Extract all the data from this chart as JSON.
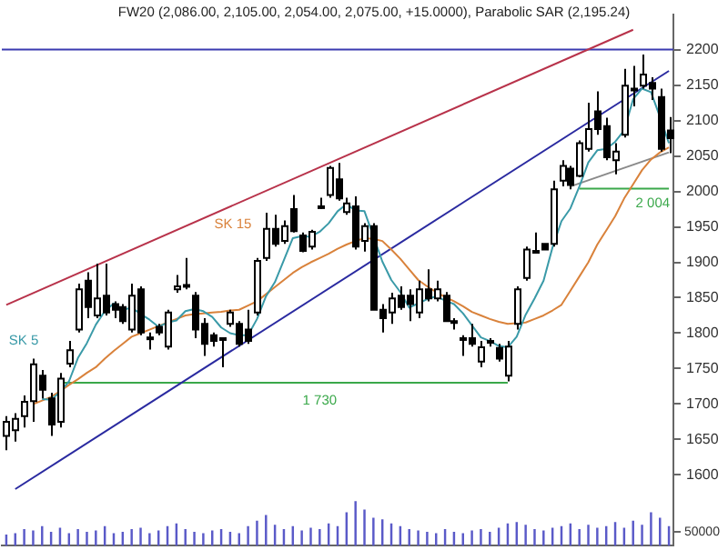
{
  "chart_data": {
    "type": "candlestick",
    "title": "FW20 (2,086.00, 2,105.00, 2,054.00, 2,075.00, +15.0000), Parabolic SAR (2,195.24)",
    "categories": [
      null,
      null,
      null,
      null,
      null,
      null,
      null,
      null,
      null,
      null,
      null,
      null,
      null,
      null,
      null,
      null,
      null,
      null,
      null,
      null,
      null,
      null,
      null,
      null,
      null,
      null,
      null,
      null,
      null,
      null,
      null,
      null,
      null,
      null,
      null,
      null,
      null,
      null,
      null,
      null,
      null,
      null,
      null,
      null,
      null,
      null,
      null,
      null,
      null,
      null,
      null,
      null,
      null,
      null,
      null,
      null,
      null,
      null,
      null,
      null,
      null,
      null,
      null,
      null,
      null,
      null,
      null,
      null,
      null,
      null,
      null,
      null,
      null,
      null,
      null
    ],
    "ohlc": [
      [
        1655,
        1683,
        1635,
        1675
      ],
      [
        1663,
        1687,
        1647,
        1679
      ],
      [
        1683,
        1712,
        1667,
        1703
      ],
      [
        1704,
        1764,
        1675,
        1756
      ],
      [
        1740,
        1748,
        1708,
        1720
      ],
      [
        1708,
        1716,
        1655,
        1671
      ],
      [
        1675,
        1744,
        1667,
        1736
      ],
      [
        1757,
        1789,
        1752,
        1776
      ],
      [
        1805,
        1870,
        1801,
        1862
      ],
      [
        1874,
        1886,
        1821,
        1837
      ],
      [
        1825,
        1898,
        1821,
        1849
      ],
      [
        1853,
        1898,
        1825,
        1829
      ],
      [
        1841,
        1845,
        1821,
        1833
      ],
      [
        1837,
        1841,
        1813,
        1817
      ],
      [
        1805,
        1870,
        1801,
        1853
      ],
      [
        1862,
        1866,
        1797,
        1801
      ],
      [
        1794,
        1801,
        1777,
        1792
      ],
      [
        1809,
        1813,
        1797,
        1801
      ],
      [
        1781,
        1833,
        1777,
        1829
      ],
      [
        1862,
        1882,
        1857,
        1866
      ],
      [
        1866,
        1906,
        1862,
        1868
      ],
      [
        1853,
        1858,
        1793,
        1805
      ],
      [
        1813,
        1821,
        1768,
        1785
      ],
      [
        1797,
        1801,
        1781,
        1789
      ],
      [
        1793,
        1793,
        1752,
        1792
      ],
      [
        1813,
        1833,
        1809,
        1829
      ],
      [
        1813,
        1817,
        1781,
        1785
      ],
      [
        1805,
        1833,
        1785,
        1789
      ],
      [
        1829,
        1906,
        1825,
        1902
      ],
      [
        1906,
        1970,
        1902,
        1947
      ],
      [
        1947,
        1967,
        1922,
        1926
      ],
      [
        1930,
        1959,
        1926,
        1951
      ],
      [
        1975,
        1995,
        1942,
        1944
      ],
      [
        1938,
        1942,
        1914,
        1916
      ],
      [
        1922,
        1946,
        1918,
        1943
      ],
      [
        1979,
        1991,
        1975,
        1979
      ],
      [
        1995,
        2036,
        1991,
        2033
      ],
      [
        2017,
        2040,
        1987,
        1990
      ],
      [
        1971,
        1991,
        1967,
        1983
      ],
      [
        1979,
        1993,
        1918,
        1922
      ],
      [
        1930,
        1955,
        1915,
        1951
      ],
      [
        1951,
        1955,
        1833,
        1833
      ],
      [
        1833,
        1841,
        1801,
        1821
      ],
      [
        1829,
        1857,
        1813,
        1849
      ],
      [
        1853,
        1866,
        1833,
        1837
      ],
      [
        1853,
        1862,
        1817,
        1841
      ],
      [
        1829,
        1874,
        1821,
        1862
      ],
      [
        1862,
        1890,
        1845,
        1849
      ],
      [
        1849,
        1874,
        1845,
        1862
      ],
      [
        1853,
        1858,
        1817,
        1817
      ],
      [
        1817,
        1821,
        1805,
        1817
      ],
      [
        1793,
        1797,
        1768,
        1793
      ],
      [
        1793,
        1813,
        1781,
        1785
      ],
      [
        1760,
        1789,
        1752,
        1780
      ],
      [
        1789,
        1793,
        1781,
        1789
      ],
      [
        1779,
        1785,
        1760,
        1764
      ],
      [
        1740,
        1789,
        1732,
        1781
      ],
      [
        1813,
        1866,
        1805,
        1862
      ],
      [
        1878,
        1922,
        1874,
        1918
      ],
      [
        1916,
        1942,
        1914,
        1916
      ],
      [
        1926,
        1926,
        1918,
        1918
      ],
      [
        1926,
        2015,
        1922,
        2003
      ],
      [
        2015,
        2044,
        2007,
        2036
      ],
      [
        2032,
        2036,
        2003,
        2009
      ],
      [
        2022,
        2072,
        2020,
        2068
      ],
      [
        2060,
        2125,
        2056,
        2088
      ],
      [
        2113,
        2141,
        2080,
        2088
      ],
      [
        2092,
        2104,
        2044,
        2048
      ],
      [
        2044,
        2068,
        2024,
        2056
      ],
      [
        2080,
        2173,
        2076,
        2149
      ],
      [
        2145,
        2177,
        2120,
        2145
      ],
      [
        2149,
        2193,
        2145,
        2165
      ],
      [
        2153,
        2161,
        2129,
        2145
      ],
      [
        2133,
        2145,
        2056,
        2060
      ],
      [
        2086,
        2105,
        2054,
        2075
      ]
    ],
    "series": [
      {
        "type": "line",
        "name": "SK 5",
        "color": "#3a9aa8",
        "values": [
          null,
          null,
          null,
          null,
          1707,
          1706,
          1717,
          1732,
          1765,
          1786,
          1812,
          1831,
          1842,
          1833,
          1836,
          1827,
          1819,
          1809,
          1815,
          1818,
          1831,
          1834,
          1831,
          1823,
          1808,
          1800,
          1797,
          1797,
          1820,
          1852,
          1872,
          1903,
          1934,
          1937,
          1936,
          1943,
          1955,
          1972,
          1982,
          1973,
          1972,
          null,
          1901,
          1875,
          1858,
          1836,
          1842,
          1848,
          1852,
          1846,
          1841,
          1828,
          1811,
          1794,
          1789,
          1782,
          1780,
          1795,
          1826,
          1849,
          1874,
          1921,
          1958,
          1976,
          2007,
          2041,
          2058,
          2060,
          2070,
          2086,
          2130,
          2145,
          2140,
          2105,
          2068
        ]
      },
      {
        "type": "line",
        "name": "SK 15",
        "color": "#d9823b",
        "values": [
          null,
          null,
          null,
          1700,
          1705,
          1710,
          1718,
          1727,
          1735,
          1744,
          1752,
          1764,
          1775,
          1785,
          1795,
          1800,
          1805,
          1810,
          1815,
          1820,
          1825,
          1827,
          1828,
          1829,
          1830,
          1832,
          1833,
          1839,
          1845,
          1855,
          1865,
          1875,
          1885,
          1893,
          1900,
          1906,
          1912,
          1919,
          1925,
          1930,
          1934,
          1933,
          1930,
          1918,
          1905,
          1890,
          1875,
          1866,
          1858,
          1851,
          1845,
          1838,
          1830,
          1825,
          1820,
          1816,
          1813,
          1814,
          1815,
          1820,
          1825,
          1832,
          1840,
          1860,
          1880,
          1900,
          1925,
          1945,
          1965,
          1990,
          2010,
          2030,
          2045,
          2055,
          2062
        ]
      },
      {
        "type": "line",
        "color": "#b8324a",
        "values": [
          1840,
          null,
          null,
          null,
          null,
          null,
          null,
          null,
          null,
          null,
          null,
          null,
          null,
          null,
          null,
          null,
          null,
          null,
          null,
          null,
          null,
          null,
          null,
          null,
          null,
          null,
          null,
          null,
          null,
          null,
          null,
          null,
          null,
          null,
          null,
          null,
          null,
          null,
          null,
          null,
          null,
          null,
          null,
          null,
          null,
          null,
          null,
          null,
          null,
          null,
          null,
          null,
          null,
          null,
          null,
          null,
          null,
          null,
          null,
          null,
          null,
          null,
          null,
          null,
          null,
          null,
          null,
          null,
          null,
          null,
          2228,
          null,
          null,
          null,
          null
        ]
      },
      {
        "type": "line",
        "color": "#2a2aa0",
        "values": [
          null,
          1580,
          null,
          null,
          null,
          null,
          null,
          null,
          null,
          null,
          null,
          null,
          null,
          null,
          null,
          null,
          null,
          null,
          null,
          null,
          null,
          null,
          null,
          null,
          null,
          null,
          null,
          null,
          null,
          null,
          null,
          null,
          null,
          null,
          null,
          null,
          null,
          null,
          null,
          null,
          null,
          null,
          null,
          null,
          null,
          null,
          null,
          null,
          null,
          null,
          null,
          null,
          null,
          null,
          null,
          null,
          null,
          null,
          null,
          null,
          null,
          null,
          null,
          null,
          null,
          null,
          null,
          null,
          null,
          null,
          null,
          null,
          null,
          null,
          2170
        ]
      },
      {
        "type": "line",
        "color": "#8a8a8a",
        "values": [
          null,
          null,
          null,
          null,
          null,
          null,
          null,
          null,
          null,
          null,
          null,
          null,
          null,
          null,
          null,
          null,
          null,
          null,
          null,
          null,
          null,
          null,
          null,
          null,
          null,
          null,
          null,
          null,
          null,
          null,
          null,
          null,
          null,
          null,
          null,
          null,
          null,
          null,
          null,
          null,
          null,
          null,
          null,
          null,
          null,
          null,
          null,
          null,
          null,
          null,
          null,
          null,
          null,
          null,
          null,
          null,
          null,
          null,
          null,
          null,
          null,
          null,
          null,
          2007,
          null,
          null,
          null,
          null,
          null,
          null,
          null,
          null,
          null,
          null,
          2055
        ]
      },
      {
        "type": "line",
        "name": "1 730",
        "color": "#3aa84a",
        "values": [
          null,
          null,
          null,
          null,
          null,
          null,
          1730,
          null,
          null,
          null,
          null,
          null,
          null,
          null,
          null,
          null,
          null,
          null,
          null,
          null,
          null,
          null,
          null,
          null,
          null,
          null,
          null,
          null,
          null,
          null,
          null,
          null,
          null,
          null,
          null,
          null,
          null,
          null,
          null,
          null,
          null,
          null,
          null,
          null,
          null,
          null,
          null,
          null,
          null,
          null,
          null,
          null,
          null,
          null,
          null,
          null,
          1730,
          null,
          null,
          null,
          null,
          null,
          null,
          null,
          null,
          null,
          null,
          null,
          null,
          null,
          null,
          null,
          null,
          null,
          null
        ]
      },
      {
        "type": "line",
        "name": "2 004",
        "color": "#3aa84a",
        "values": [
          null,
          null,
          null,
          null,
          null,
          null,
          null,
          null,
          null,
          null,
          null,
          null,
          null,
          null,
          null,
          null,
          null,
          null,
          null,
          null,
          null,
          null,
          null,
          null,
          null,
          null,
          null,
          null,
          null,
          null,
          null,
          null,
          null,
          null,
          null,
          null,
          null,
          null,
          null,
          null,
          null,
          null,
          null,
          null,
          null,
          null,
          null,
          null,
          null,
          null,
          null,
          null,
          null,
          null,
          null,
          null,
          null,
          null,
          null,
          null,
          null,
          null,
          null,
          null,
          2004,
          null,
          null,
          null,
          null,
          null,
          null,
          null,
          null,
          null,
          2004
        ]
      },
      {
        "type": "bar",
        "axis": "y2",
        "color": "#5a5ac8",
        "values": [
          40000,
          45000,
          60000,
          55000,
          70000,
          50000,
          65000,
          45000,
          60000,
          50000,
          55000,
          70000,
          45000,
          50000,
          60000,
          65000,
          45000,
          55000,
          70000,
          80000,
          60000,
          50000,
          45000,
          55000,
          60000,
          50000,
          45000,
          70000,
          90000,
          110000,
          75000,
          60000,
          70000,
          55000,
          65000,
          60000,
          80000,
          70000,
          120000,
          160000,
          130000,
          100000,
          95000,
          80000,
          70000,
          60000,
          55000,
          50000,
          45000,
          60000,
          50000,
          45000,
          55000,
          60000,
          50000,
          65000,
          80000,
          85000,
          75000,
          60000,
          55000,
          65000,
          70000,
          80000,
          60000,
          75000,
          65000,
          70000,
          85000,
          65000,
          90000,
          75000,
          120000,
          100000,
          70000
        ]
      }
    ],
    "ylim": [
      1500,
      2250
    ],
    "yticks": [
      1600,
      1650,
      1700,
      1750,
      1800,
      1850,
      1900,
      1950,
      2000,
      2050,
      2100,
      2150,
      2200
    ],
    "y2lim": [
      0,
      1900000
    ],
    "y2ticks": [
      50000
    ],
    "ref_lines": [
      {
        "axis": "y",
        "value": 2200,
        "color": "#3a3ab0"
      }
    ],
    "tick_labels": "y",
    "grid": false
  }
}
